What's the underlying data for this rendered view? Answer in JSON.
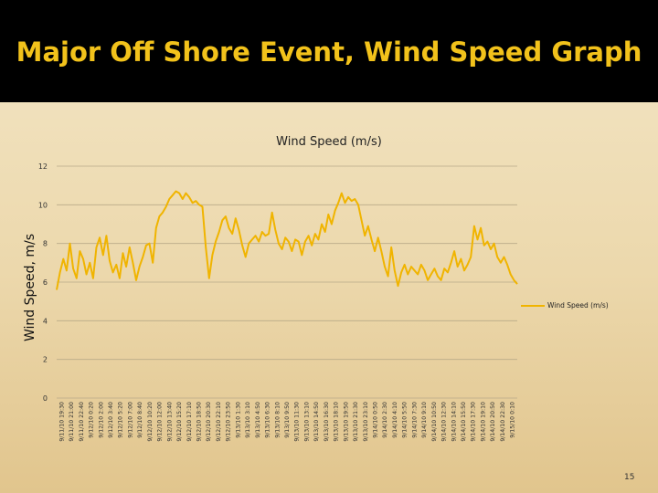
{
  "slide": {
    "title": "Major Off Shore Event, Wind Speed Graph",
    "page_number": "15"
  },
  "chart_data": {
    "type": "line",
    "title": "Wind Speed (m/s)",
    "ylabel": "Wind Speed, m/s",
    "xlabel": "",
    "ylim": [
      0,
      12
    ],
    "yticks": [
      0,
      2,
      4,
      6,
      8,
      10,
      12
    ],
    "grid": true,
    "legend": "right",
    "x_tick_labels": [
      "9/11/10 19:30",
      "9/11/10 21:00",
      "9/11/10 22:40",
      "9/12/10 0:20",
      "9/12/10 2:00",
      "9/12/10 3:40",
      "9/12/10 5:20",
      "9/12/10 7:00",
      "9/12/10 8:40",
      "9/12/10 10:20",
      "9/12/10 12:00",
      "9/12/10 13:40",
      "9/12/10 15:20",
      "9/12/10 17:10",
      "9/12/10 18:50",
      "9/12/10 20:30",
      "9/12/10 22:10",
      "9/12/10 23:50",
      "9/13/10 1:30",
      "9/13/10 3:10",
      "9/13/10 4:50",
      "9/13/10 6:30",
      "9/13/10 8:10",
      "9/13/10 9:50",
      "9/13/10 11:30",
      "9/13/10 13:10",
      "9/13/10 14:50",
      "9/13/10 16:30",
      "9/13/10 18:10",
      "9/13/10 19:50",
      "9/13/10 21:30",
      "9/13/10 23:10",
      "9/14/10 0:50",
      "9/14/10 2:30",
      "9/14/10 4:10",
      "9/14/10 5:50",
      "9/14/10 7:30",
      "9/14/10 9:10",
      "9/14/10 10:50",
      "9/14/10 12:30",
      "9/14/10 14:10",
      "9/14/10 15:50",
      "9/14/10 17:30",
      "9/14/10 19:10",
      "9/14/10 20:50",
      "9/14/10 22:30",
      "9/15/10 0:10"
    ],
    "series": [
      {
        "name": "Wind Speed (m/s)",
        "color": "#f0b400",
        "values": [
          5.6,
          6.5,
          7.2,
          6.6,
          8.0,
          6.7,
          6.2,
          7.6,
          7.2,
          6.4,
          7.0,
          6.2,
          7.8,
          8.3,
          7.4,
          8.4,
          7.1,
          6.5,
          6.9,
          6.2,
          7.5,
          6.8,
          7.8,
          7.0,
          6.1,
          6.8,
          7.3,
          7.9,
          8.0,
          7.0,
          8.8,
          9.4,
          9.6,
          9.9,
          10.3,
          10.5,
          10.7,
          10.6,
          10.3,
          10.6,
          10.4,
          10.1,
          10.2,
          10.0,
          9.9,
          7.8,
          6.2,
          7.4,
          8.1,
          8.6,
          9.2,
          9.4,
          8.8,
          8.5,
          9.3,
          8.7,
          7.9,
          7.3,
          8.0,
          8.2,
          8.4,
          8.1,
          8.6,
          8.4,
          8.5,
          9.6,
          8.7,
          8.0,
          7.7,
          8.3,
          8.1,
          7.6,
          8.2,
          8.1,
          7.4,
          8.1,
          8.4,
          7.9,
          8.5,
          8.2,
          9.0,
          8.6,
          9.5,
          9.0,
          9.7,
          10.1,
          10.6,
          10.1,
          10.4,
          10.2,
          10.3,
          10.0,
          9.2,
          8.4,
          8.9,
          8.2,
          7.6,
          8.3,
          7.6,
          6.8,
          6.3,
          7.8,
          6.6,
          5.8,
          6.5,
          6.9,
          6.4,
          6.8,
          6.6,
          6.4,
          6.9,
          6.6,
          6.1,
          6.4,
          6.7,
          6.3,
          6.1,
          6.7,
          6.5,
          7.0,
          7.6,
          6.8,
          7.2,
          6.6,
          6.9,
          7.3,
          8.9,
          8.2,
          8.8,
          7.9,
          8.1,
          7.7,
          8.0,
          7.3,
          7.0,
          7.3,
          6.9,
          6.4,
          6.1,
          5.9
        ]
      }
    ]
  }
}
